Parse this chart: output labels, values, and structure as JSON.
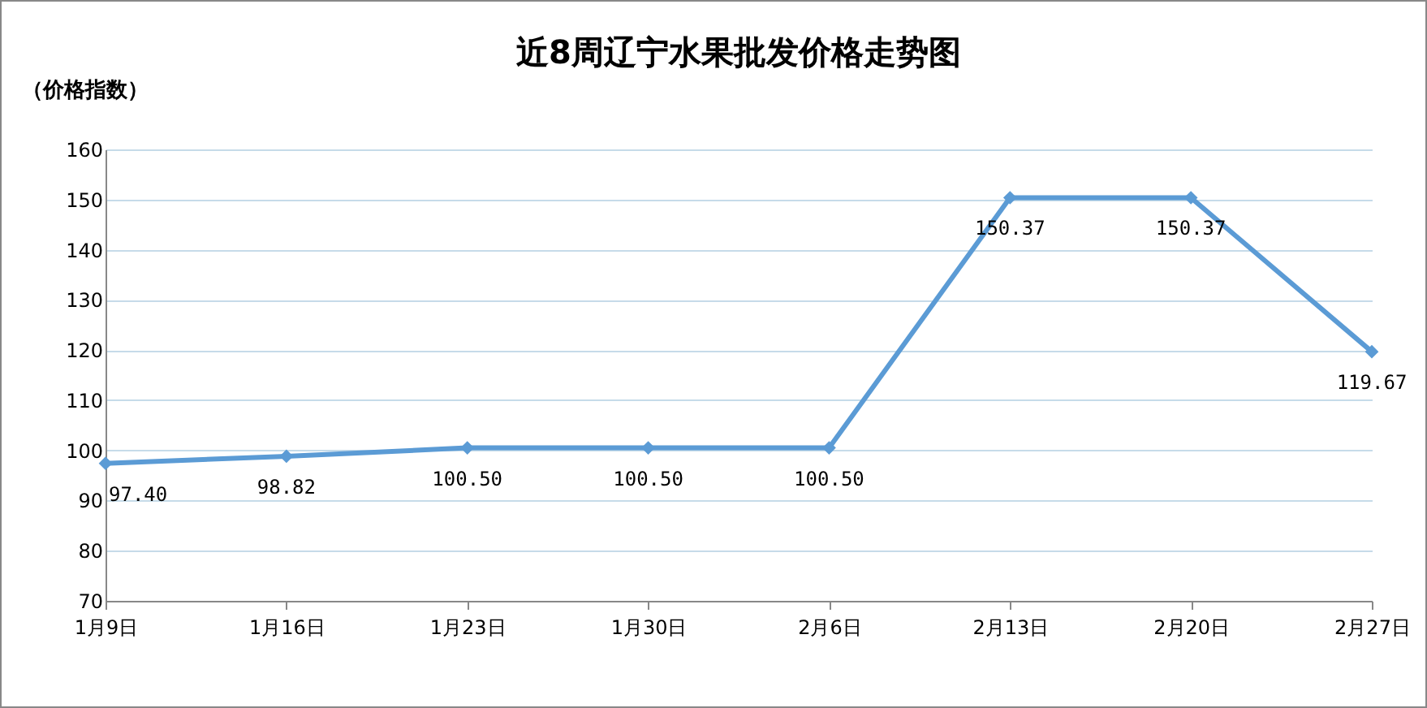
{
  "chart_data": {
    "type": "line",
    "title": "近8周辽宁水果批发价格走势图",
    "ylabel": "（价格指数）",
    "categories": [
      "1月9日",
      "1月16日",
      "1月23日",
      "1月30日",
      "2月6日",
      "2月13日",
      "2月20日",
      "2月27日"
    ],
    "series": [
      {
        "color": "#5b9bd5",
        "values": [
          97.4,
          98.82,
          100.5,
          100.5,
          100.5,
          150.37,
          150.37,
          119.67
        ],
        "value_labels": [
          "97.40",
          "98.82",
          "100.50",
          "100.50",
          "100.50",
          "150.37",
          "150.37",
          "119.67"
        ]
      }
    ],
    "ylim": [
      70,
      160
    ],
    "yticks": [
      70,
      80,
      90,
      100,
      110,
      120,
      130,
      140,
      150,
      160
    ],
    "grid": "y",
    "marker": "diamond",
    "line_style": "solid"
  }
}
